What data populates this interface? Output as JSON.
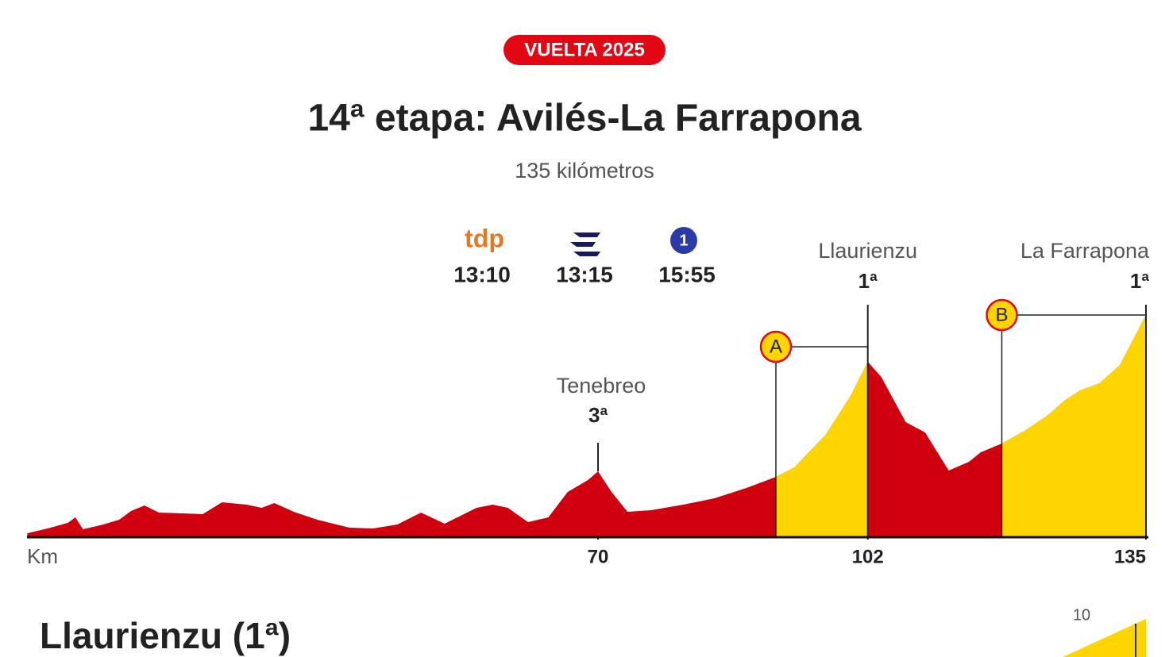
{
  "badge": "VUELTA 2025",
  "title": "14ª etapa: Avilés-La Farrapona",
  "subtitle": "135 kilómetros",
  "broadcasters": [
    {
      "logo": "tdp",
      "time": "13:10"
    },
    {
      "time": "13:15"
    },
    {
      "logo": "1",
      "time": "15:55"
    }
  ],
  "chart_data": {
    "type": "area",
    "x_label": "Km",
    "x": [
      2.3,
      4.7,
      7.1,
      8.0,
      8.9,
      11.3,
      13.2,
      14.6,
      16.2,
      17.9,
      20.7,
      23.1,
      25.4,
      28.3,
      30.1,
      31.6,
      33.9,
      36.7,
      40.5,
      43.3,
      46.2,
      49.0,
      51.8,
      55.6,
      57.5,
      59.3,
      61.7,
      64.1,
      66.4,
      68.8,
      70,
      71.6,
      73.5,
      76.3,
      80.1,
      83.8,
      87.6,
      91.1,
      93.3,
      97.0,
      99.9,
      102,
      103.6,
      106.5,
      108.8,
      111.6,
      114.0,
      115.4,
      117.9,
      120.6,
      123.4,
      125.3,
      127.2,
      129.5,
      131.9,
      135
    ],
    "values": [
      24,
      60,
      102,
      144,
      54,
      90,
      126,
      192,
      234,
      180,
      174,
      168,
      258,
      240,
      216,
      252,
      186,
      126,
      66,
      60,
      90,
      180,
      96,
      216,
      240,
      216,
      108,
      144,
      336,
      426,
      492,
      336,
      186,
      198,
      240,
      288,
      366,
      450,
      522,
      768,
      1056,
      1320,
      1206,
      864,
      786,
      498,
      564,
      636,
      702,
      798,
      918,
      1026,
      1104,
      1158,
      1296,
      1674
    ],
    "color": "#d0000f",
    "climb_color": "#ffd500",
    "xlim": [
      0,
      135
    ],
    "xticks": [
      70,
      102,
      135
    ],
    "climbs": [
      {
        "name": "Tenebreo",
        "category": "3ª",
        "km": 70
      },
      {
        "name": "Llaurienzu",
        "category": "1ª",
        "km": 102,
        "label": "A",
        "start_km": 91.1
      },
      {
        "name": "La Farrapona",
        "category": "1ª",
        "km": 135,
        "label": "B",
        "start_km": 117.9
      }
    ]
  },
  "next_section": {
    "title": "Llaurienzu (1ª)",
    "tick": 10
  }
}
